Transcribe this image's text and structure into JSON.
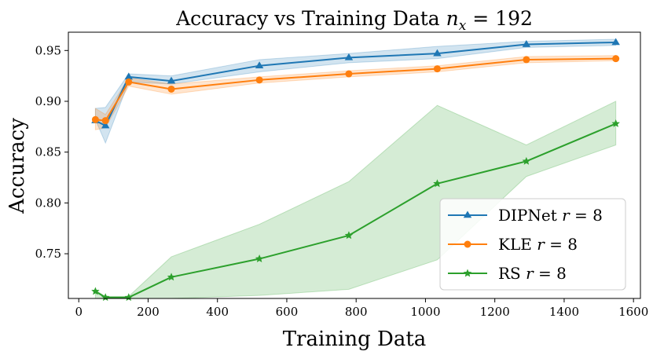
{
  "chart_data": {
    "type": "line",
    "title": "Accuracy vs Training Data",
    "title_math": "n",
    "title_math_sub": "x",
    "title_math_rest": " = 192",
    "xlabel": "Training Data",
    "ylabel": "Accuracy",
    "xlim": [
      -30,
      1620
    ],
    "ylim": [
      0.706,
      0.968
    ],
    "xticks": [
      0,
      200,
      400,
      600,
      800,
      1000,
      1200,
      1400,
      1600
    ],
    "yticks": [
      0.75,
      0.8,
      0.85,
      0.9,
      0.95
    ],
    "ytick_labels": [
      "0.75",
      "0.80",
      "0.85",
      "0.90",
      "0.95"
    ],
    "legend_position": "lower-right",
    "series": [
      {
        "name": "DIPNet",
        "legend_math": "r",
        "legend_rest": " = 8",
        "color": "#1f77b4",
        "marker": "triangle",
        "x": [
          48,
          77,
          144,
          267,
          521,
          779,
          1034,
          1291,
          1549
        ],
        "y": [
          0.881,
          0.876,
          0.924,
          0.92,
          0.935,
          0.943,
          0.947,
          0.956,
          0.958
        ],
        "lower": [
          0.882,
          0.859,
          0.919,
          0.917,
          0.929,
          0.938,
          0.942,
          0.953,
          0.955
        ],
        "upper": [
          0.893,
          0.894,
          0.927,
          0.925,
          0.941,
          0.947,
          0.954,
          0.959,
          0.961
        ]
      },
      {
        "name": "KLE",
        "legend_math": "r",
        "legend_rest": " = 8",
        "color": "#ff7f0e",
        "marker": "circle",
        "x": [
          48,
          77,
          144,
          267,
          521,
          779,
          1034,
          1291,
          1549
        ],
        "y": [
          0.882,
          0.881,
          0.919,
          0.912,
          0.921,
          0.927,
          0.932,
          0.941,
          0.942
        ],
        "lower": [
          0.872,
          0.874,
          0.915,
          0.907,
          0.918,
          0.924,
          0.929,
          0.938,
          0.94
        ],
        "upper": [
          0.893,
          0.887,
          0.923,
          0.917,
          0.924,
          0.93,
          0.935,
          0.944,
          0.945
        ]
      },
      {
        "name": "RS",
        "legend_math": "r",
        "legend_rest": " = 8",
        "color": "#2ca02c",
        "marker": "star",
        "x": [
          48,
          77,
          144,
          267,
          521,
          779,
          1034,
          1291,
          1549
        ],
        "y": [
          0.713,
          0.707,
          0.707,
          0.727,
          0.745,
          0.768,
          0.819,
          0.841,
          0.878
        ],
        "lower": [
          0.706,
          0.706,
          0.706,
          0.706,
          0.709,
          0.715,
          0.744,
          0.826,
          0.857
        ],
        "upper": [
          0.714,
          0.708,
          0.708,
          0.747,
          0.779,
          0.821,
          0.896,
          0.857,
          0.9
        ]
      }
    ]
  }
}
